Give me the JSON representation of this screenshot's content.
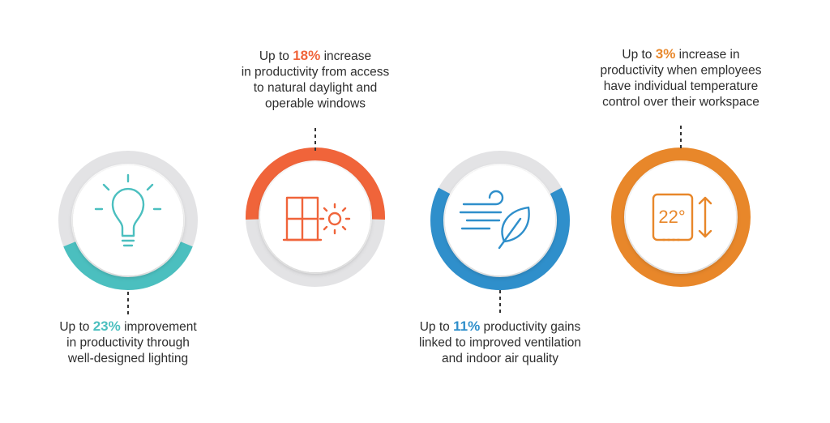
{
  "items": [
    {
      "prefix": "Up to",
      "highlight": "23%",
      "lines": [
        "improvement",
        "in productivity through",
        "well-designed lighting"
      ]
    },
    {
      "prefix": "Up to",
      "highlight": "18%",
      "lines": [
        "increase",
        "in productivity from access",
        "to natural daylight and",
        "operable windows"
      ]
    },
    {
      "prefix": "Up to",
      "highlight": "11%",
      "lines": [
        "productivity gains",
        "linked to improved ventilation",
        "and indoor air quality"
      ]
    },
    {
      "prefix": "Up to",
      "highlight": "3%",
      "lines": [
        "increase in",
        "productivity when employees",
        "have individual temperature",
        "control over their workspace"
      ]
    }
  ],
  "thermostat_label": "22°"
}
